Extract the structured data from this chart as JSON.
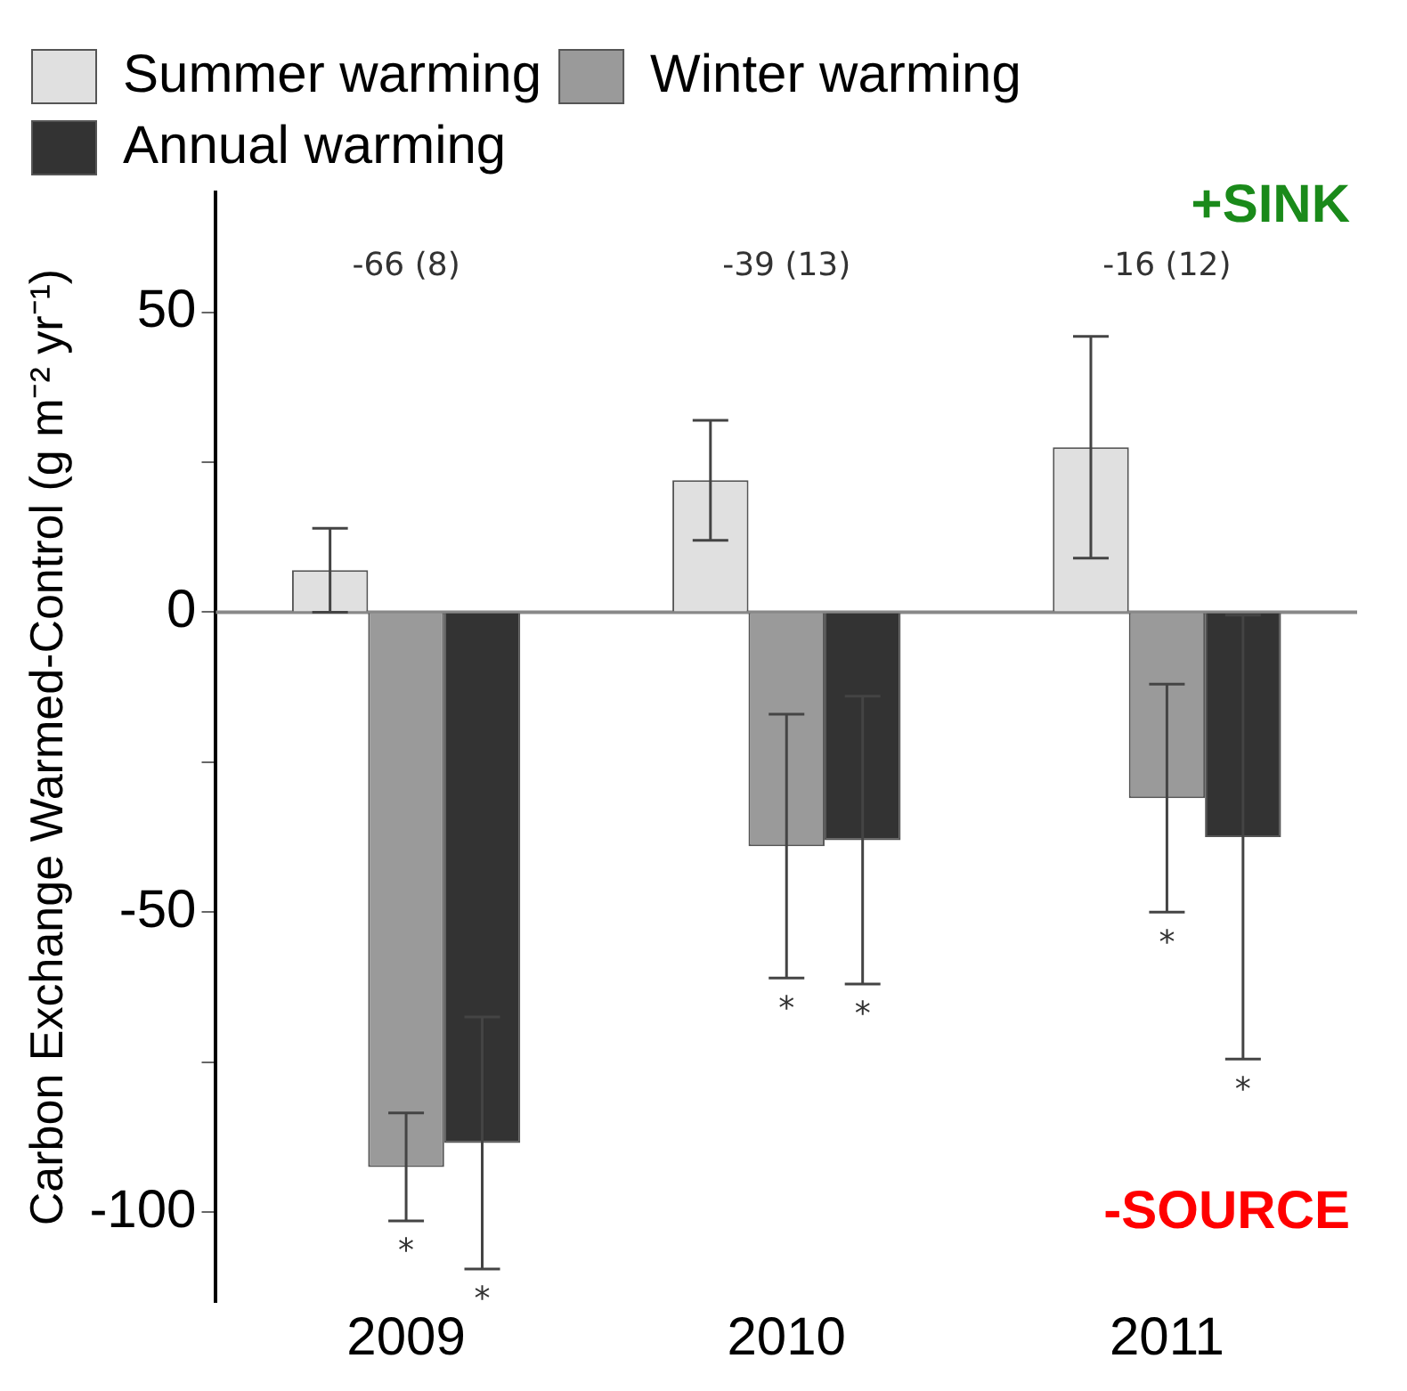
{
  "chart_data": {
    "type": "bar",
    "categories": [
      "2009",
      "2010",
      "2011"
    ],
    "series": [
      {
        "name": "Summer warming",
        "color": "#e0e0e0",
        "values": [
          7,
          22,
          27.5
        ],
        "errors": [
          7,
          10,
          18.5
        ]
      },
      {
        "name": "Winter warming",
        "color": "#9a9a9a",
        "values": [
          -92.5,
          -39,
          -31
        ],
        "errors": [
          9,
          22,
          19
        ]
      },
      {
        "name": "Annual warming",
        "color": "#333333",
        "values": [
          -88.5,
          -38,
          -37.5
        ],
        "errors": [
          21,
          24,
          37
        ]
      }
    ],
    "ylabel": "Carbon Exchange Warmed-Control (g m⁻² yr⁻¹)",
    "ylim": [
      -115,
      70
    ],
    "yticks": [
      -100,
      {
        "value": -75,
        "label": null
      },
      -50,
      {
        "value": -25,
        "label": null
      },
      0,
      {
        "value": 25,
        "label": null
      },
      50
    ],
    "annotations": [
      "-66 (8)",
      "-39 (13)",
      "-16 (12)",
      "*",
      "*",
      "*",
      "*",
      "*",
      "*",
      "+SINK",
      "-SOURCE"
    ],
    "ref_lines": [
      {
        "axis": "y",
        "value": 0,
        "color": "#888888"
      }
    ],
    "grid": false,
    "legend": "top left"
  }
}
